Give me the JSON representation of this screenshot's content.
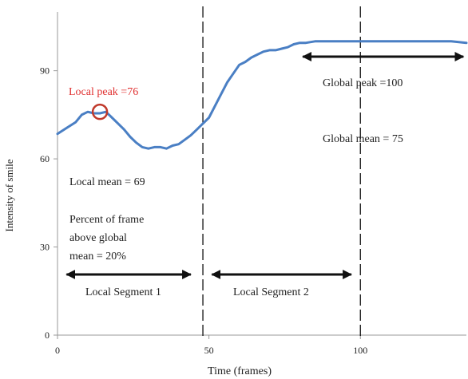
{
  "chart_data": {
    "type": "line",
    "xlabel": "Time (frames)",
    "ylabel": "Intensity of smile",
    "xlim": [
      0,
      135
    ],
    "ylim": [
      0,
      100
    ],
    "x_ticks": [
      0,
      50,
      100
    ],
    "y_ticks": [
      0,
      30,
      60,
      90
    ],
    "grid": false,
    "series": [
      {
        "color": "#4a7fc4",
        "x": [
          0,
          3,
          6,
          8,
          10,
          12,
          14,
          16,
          18,
          20,
          22,
          24,
          26,
          28,
          30,
          32,
          34,
          36,
          38,
          40,
          42,
          44,
          46,
          48,
          50,
          52,
          54,
          56,
          58,
          60,
          62,
          64,
          66,
          68,
          70,
          72,
          74,
          76,
          78,
          80,
          82,
          85,
          90,
          100,
          110,
          120,
          130,
          135
        ],
        "y": [
          68.5,
          70.5,
          72.5,
          75,
          76,
          75.5,
          75.5,
          76,
          74,
          72,
          70,
          67.5,
          65.5,
          64,
          63.5,
          64,
          64,
          63.5,
          64.5,
          65,
          66.5,
          68,
          70,
          72,
          74,
          78,
          82,
          86,
          89,
          92,
          93,
          94.5,
          95.5,
          96.5,
          97,
          97,
          97.5,
          98,
          99,
          99.5,
          99.5,
          100,
          100,
          100,
          100,
          100,
          100,
          99.5
        ]
      }
    ],
    "vertical_lines_x": [
      48,
      100
    ],
    "local_peak_marker": {
      "x": 14,
      "y": 76
    },
    "annotations": {
      "local_peak": "Local peak =76",
      "local_mean": "Local mean = 69",
      "percent_line1": "Percent of frame",
      "percent_line2": "above global",
      "percent_line3": "mean = 20%",
      "segment1": "Local Segment 1",
      "segment2": "Local  Segment 2",
      "global_peak": "Global peak =100",
      "global_mean": "Global mean = 75"
    },
    "colors": {
      "line": "#4a7fc4",
      "local_peak_text": "#e03030",
      "marker": "#c0392b",
      "axis": "#999999",
      "text": "#222222"
    }
  }
}
